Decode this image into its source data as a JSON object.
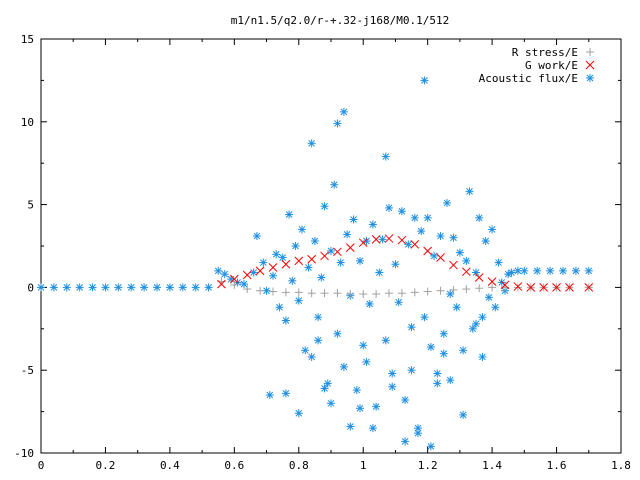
{
  "chart_data": {
    "type": "scatter",
    "title": "m1/n1.5/q2.0/r-+.32-j168/M0.1/512",
    "xlabel": "",
    "ylabel": "",
    "xlim": [
      0,
      1.8
    ],
    "ylim": [
      -10,
      15
    ],
    "x_ticks": [
      "0",
      "0.2",
      "0.4",
      "0.6",
      "0.8",
      "1",
      "1.2",
      "1.4",
      "1.6",
      "1.8"
    ],
    "y_ticks": [
      "-10",
      "-5",
      "0",
      "5",
      "10",
      "15"
    ],
    "grid": false,
    "legend_position": "top-right",
    "series": [
      {
        "name": "R stress/E",
        "marker": "+",
        "color": "#a0a0a0",
        "x": [
          0.56,
          0.6,
          0.64,
          0.68,
          0.72,
          0.76,
          0.8,
          0.84,
          0.88,
          0.92,
          0.96,
          1.0,
          1.04,
          1.08,
          1.12,
          1.16,
          1.2,
          1.24,
          1.28,
          1.32,
          1.36,
          1.4,
          1.44,
          1.48,
          1.52,
          1.56,
          1.6,
          1.64,
          1.7
        ],
        "y": [
          0.35,
          0.15,
          -0.1,
          -0.2,
          -0.25,
          -0.3,
          -0.3,
          -0.35,
          -0.35,
          -0.35,
          -0.4,
          -0.4,
          -0.4,
          -0.35,
          -0.35,
          -0.3,
          -0.25,
          -0.2,
          -0.15,
          -0.1,
          -0.05,
          0.0,
          0.0,
          0.0,
          0.0,
          0.0,
          0.0,
          0.0,
          0.0
        ]
      },
      {
        "name": "G work/E",
        "marker": "x",
        "color": "#ff0000",
        "x": [
          0.56,
          0.6,
          0.64,
          0.68,
          0.72,
          0.76,
          0.8,
          0.84,
          0.88,
          0.92,
          0.96,
          1.0,
          1.04,
          1.08,
          1.12,
          1.16,
          1.2,
          1.24,
          1.28,
          1.32,
          1.36,
          1.4,
          1.44,
          1.48,
          1.52,
          1.56,
          1.6,
          1.64,
          1.7
        ],
        "y": [
          0.2,
          0.5,
          0.75,
          1.0,
          1.2,
          1.4,
          1.6,
          1.7,
          1.9,
          2.15,
          2.4,
          2.7,
          2.9,
          2.95,
          2.85,
          2.6,
          2.2,
          1.8,
          1.35,
          0.95,
          0.6,
          0.35,
          0.15,
          0.05,
          0.0,
          0.0,
          0.0,
          0.0,
          0.0
        ]
      },
      {
        "name": "Acoustic flux/E",
        "marker": "*",
        "color": "#1e8fe0",
        "x": [
          0.0,
          0.04,
          0.08,
          0.12,
          0.16,
          0.2,
          0.24,
          0.28,
          0.32,
          0.36,
          0.4,
          0.44,
          0.48,
          0.52,
          0.55,
          0.57,
          0.59,
          0.61,
          0.63,
          0.66,
          0.67,
          0.69,
          0.7,
          0.72,
          0.73,
          0.74,
          0.75,
          0.76,
          0.77,
          0.78,
          0.79,
          0.8,
          0.81,
          0.82,
          0.83,
          0.84,
          0.85,
          0.86,
          0.87,
          0.88,
          0.89,
          0.9,
          0.91,
          0.92,
          0.93,
          0.94,
          0.95,
          0.96,
          0.97,
          0.98,
          0.99,
          1.0,
          1.01,
          1.02,
          1.03,
          1.04,
          1.05,
          1.06,
          1.07,
          1.08,
          1.09,
          1.1,
          1.11,
          1.12,
          1.13,
          1.14,
          1.15,
          1.16,
          1.17,
          1.18,
          1.19,
          1.2,
          1.21,
          1.22,
          1.23,
          1.24,
          1.25,
          1.26,
          1.27,
          1.28,
          1.29,
          1.3,
          1.31,
          1.32,
          1.33,
          1.34,
          1.35,
          1.36,
          1.37,
          1.38,
          1.39,
          1.4,
          1.41,
          1.42,
          1.43,
          1.44,
          1.45,
          1.46,
          1.48,
          1.5,
          1.54,
          1.58,
          1.62,
          1.66,
          1.7,
          0.94,
          0.92,
          0.84,
          0.96,
          1.19,
          1.21,
          1.07,
          0.99,
          1.13,
          0.76,
          0.88,
          1.03,
          1.17,
          1.23,
          1.31,
          0.8,
          0.9,
          1.09,
          1.27,
          1.37,
          0.71,
          0.86,
          1.01,
          1.15,
          1.25,
          1.35
        ],
        "y": [
          0.0,
          0.0,
          0.0,
          0.0,
          0.0,
          0.0,
          0.0,
          0.0,
          0.0,
          0.0,
          0.0,
          0.0,
          0.0,
          0.0,
          1.0,
          0.8,
          0.5,
          0.3,
          0.2,
          0.9,
          3.1,
          1.5,
          -0.2,
          0.7,
          2.0,
          -1.2,
          1.8,
          -2.0,
          4.4,
          0.4,
          2.5,
          -0.8,
          3.5,
          -3.8,
          1.2,
          -4.2,
          2.8,
          -1.8,
          0.6,
          4.9,
          -5.8,
          2.2,
          6.2,
          -2.8,
          1.5,
          -4.8,
          3.2,
          -0.5,
          4.1,
          -6.2,
          1.6,
          -3.5,
          2.8,
          -1.0,
          3.8,
          -7.2,
          0.9,
          2.9,
          -3.2,
          4.8,
          -5.2,
          1.4,
          -0.9,
          4.6,
          -6.8,
          2.6,
          -2.4,
          4.2,
          -8.5,
          3.4,
          -1.8,
          4.2,
          -3.6,
          1.9,
          -5.8,
          3.1,
          -2.8,
          5.1,
          -0.4,
          3.0,
          -1.2,
          2.1,
          -3.8,
          1.6,
          5.8,
          -2.5,
          0.9,
          4.2,
          -1.8,
          2.8,
          -0.6,
          3.5,
          -1.2,
          1.5,
          0.3,
          -0.2,
          0.8,
          0.9,
          1.0,
          1.0,
          1.0,
          1.0,
          1.0,
          1.0,
          1.0,
          10.6,
          9.9,
          8.7,
          -8.4,
          12.5,
          -9.6,
          7.9,
          -7.3,
          -9.3,
          -6.4,
          -6.1,
          -8.5,
          -8.8,
          -5.2,
          -7.7,
          -7.6,
          -7.0,
          -6.0,
          -5.6,
          -4.2,
          -6.5,
          -3.2,
          -4.5,
          -5.0,
          -4.0,
          -2.2
        ]
      }
    ]
  }
}
